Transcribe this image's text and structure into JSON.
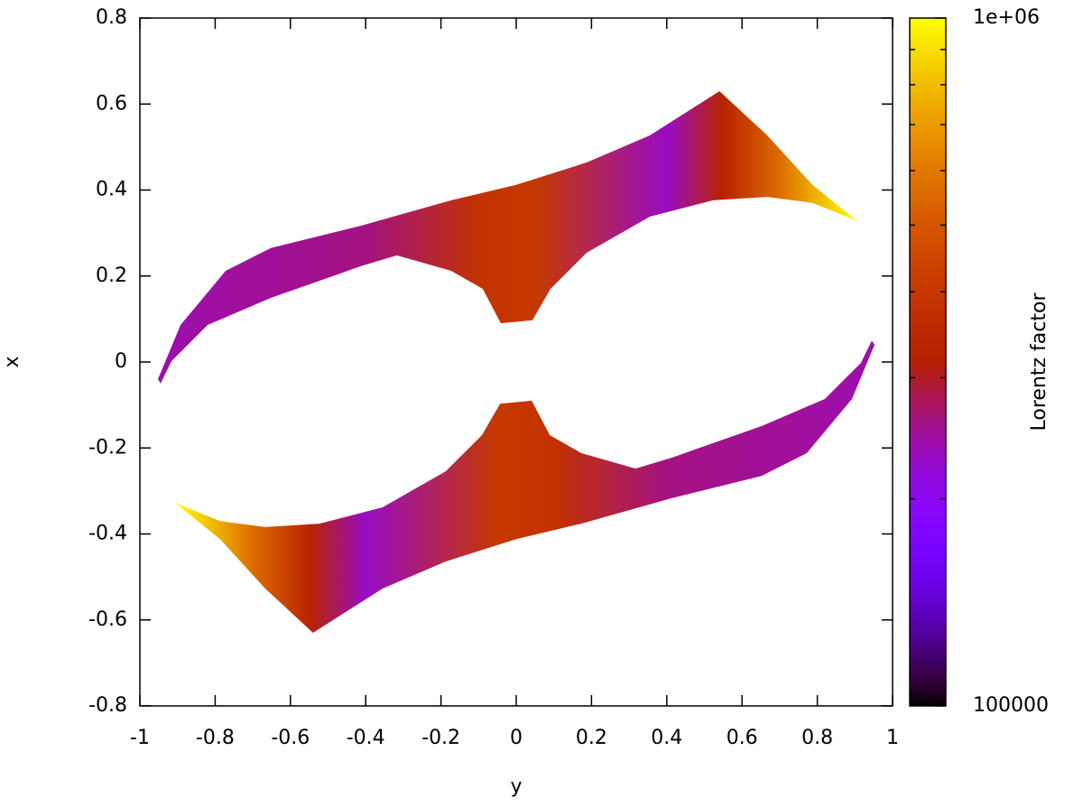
{
  "chart_data": {
    "type": "colormap",
    "xlabel": "y",
    "ylabel": "x",
    "cblabel": "Lorentz factor",
    "xlim": [
      -1,
      1
    ],
    "xticks": [
      -1,
      -0.8,
      -0.6,
      -0.4,
      -0.2,
      0,
      0.2,
      0.4,
      0.6,
      0.8,
      1
    ],
    "ylim": [
      -0.8,
      0.8
    ],
    "yticks": [
      -0.8,
      -0.6,
      -0.4,
      -0.2,
      0,
      0.2,
      0.4,
      0.6,
      0.8
    ],
    "cblim": [
      100000,
      1000000
    ],
    "cblog": true,
    "cbticks": [
      100000,
      {
        "value": 1000000,
        "label": "1e+06"
      }
    ],
    "cbminorticks": [
      200000,
      300000,
      400000,
      500000,
      600000,
      700000,
      800000,
      900000
    ],
    "regions": [
      {
        "x": [
          -0.952,
          -0.892,
          -0.772,
          -0.652,
          -0.412,
          -0.173,
          0,
          0.187,
          0.355,
          0.54,
          0.667,
          0.787,
          0.906,
          0.787,
          0.667,
          0.523,
          0.355,
          0.187,
          0.091,
          0.043,
          -0.041,
          -0.089,
          -0.173,
          -0.317,
          -0.412,
          -0.652,
          -0.82,
          -0.916,
          -0.945
        ],
        "y": [
          -0.04,
          0.086,
          0.212,
          0.265,
          0.317,
          0.376,
          0.412,
          0.464,
          0.527,
          0.63,
          0.527,
          0.412,
          0.328,
          0.37,
          0.384,
          0.376,
          0.338,
          0.254,
          0.17,
          0.097,
          0.09,
          0.17,
          0.212,
          0.248,
          0.223,
          0.149,
          0.086,
          0.002,
          -0.05
        ],
        "gradient_x": [
          -0.95,
          -0.4,
          -0.1,
          0.05,
          0.4,
          0.55,
          0.7,
          0.9
        ],
        "gradient_values": [
          240000,
          260000,
          380000,
          400000,
          230000,
          330000,
          560000,
          1000000
        ]
      },
      {
        "x": [
          0.952,
          0.892,
          0.772,
          0.652,
          0.412,
          0.173,
          0,
          -0.187,
          -0.355,
          -0.54,
          -0.667,
          -0.787,
          -0.906,
          -0.787,
          -0.667,
          -0.523,
          -0.355,
          -0.187,
          -0.091,
          -0.043,
          0.041,
          0.089,
          0.173,
          0.317,
          0.412,
          0.652,
          0.82,
          0.916,
          0.945
        ],
        "y": [
          0.04,
          -0.086,
          -0.212,
          -0.265,
          -0.317,
          -0.376,
          -0.412,
          -0.464,
          -0.527,
          -0.63,
          -0.527,
          -0.412,
          -0.328,
          -0.37,
          -0.384,
          -0.376,
          -0.338,
          -0.254,
          -0.17,
          -0.097,
          -0.09,
          -0.17,
          -0.212,
          -0.248,
          -0.223,
          -0.149,
          -0.086,
          -0.002,
          0.05
        ],
        "gradient_x": [
          -0.9,
          -0.7,
          -0.55,
          -0.4,
          -0.05,
          0.1,
          0.4,
          0.95
        ],
        "gradient_values": [
          1000000,
          560000,
          330000,
          230000,
          400000,
          380000,
          260000,
          240000
        ]
      }
    ]
  }
}
